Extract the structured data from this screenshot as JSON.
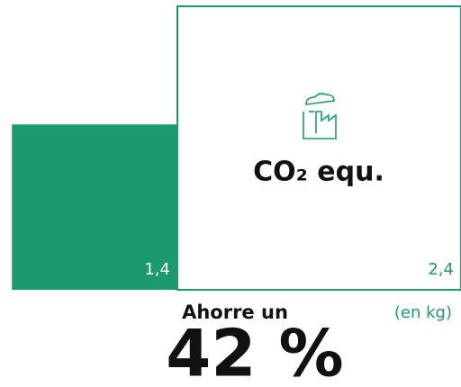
{
  "chart_data": {
    "type": "square",
    "title": "CO₂ equ.",
    "unit_label": "(en kg)",
    "values": [
      1.4,
      2.4
    ],
    "value_labels": [
      "1,4",
      "2,4"
    ],
    "color": "#1a9a6e",
    "styles": [
      "filled",
      "outline"
    ],
    "annotation": "Ahorre un",
    "highlight": "42 %"
  }
}
